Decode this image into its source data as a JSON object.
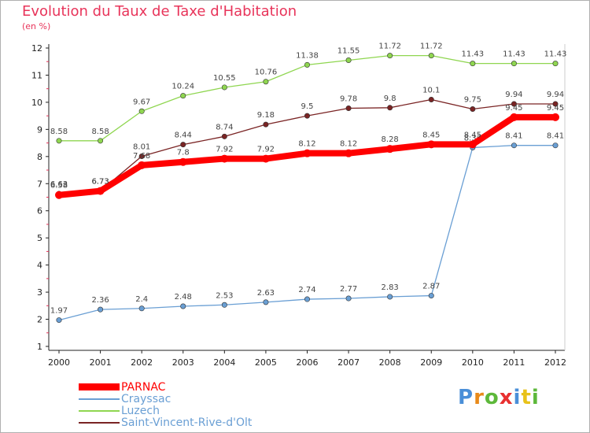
{
  "title": "Evolution du Taux de Taxe d'Habitation",
  "subtitle": "(en %)",
  "logo": "Proxiti",
  "chart_data": {
    "type": "line",
    "x": [
      2000,
      2001,
      2002,
      2003,
      2004,
      2005,
      2006,
      2007,
      2008,
      2009,
      2010,
      2011,
      2012
    ],
    "ylim": [
      1,
      12
    ],
    "yticks": [
      1,
      2,
      3,
      4,
      5,
      6,
      7,
      8,
      9,
      10,
      11,
      12
    ],
    "grid": false,
    "legend_position": "bottom-left",
    "series": [
      {
        "name": "PARNAC",
        "color": "#ff0000",
        "values": [
          6.58,
          6.73,
          7.68,
          7.8,
          7.92,
          7.92,
          8.12,
          8.12,
          8.28,
          8.45,
          8.45,
          9.45,
          9.45
        ]
      },
      {
        "name": "Crayssac",
        "color": "#6a9fd4",
        "values": [
          1.97,
          2.36,
          2.4,
          2.48,
          2.53,
          2.63,
          2.74,
          2.77,
          2.83,
          2.87,
          8.33,
          8.41,
          8.41
        ]
      },
      {
        "name": "Luzech",
        "color": "#8fd650",
        "values": [
          8.58,
          8.58,
          9.67,
          10.24,
          10.55,
          10.76,
          11.38,
          11.55,
          11.72,
          11.72,
          11.43,
          11.43,
          11.43
        ]
      },
      {
        "name": "Saint-Vincent-Rive-d'Olt",
        "color": "#7a2424",
        "values": [
          6.63,
          6.73,
          8.01,
          8.44,
          8.74,
          9.18,
          9.5,
          9.78,
          9.8,
          10.1,
          9.75,
          9.94,
          9.94
        ]
      }
    ]
  }
}
